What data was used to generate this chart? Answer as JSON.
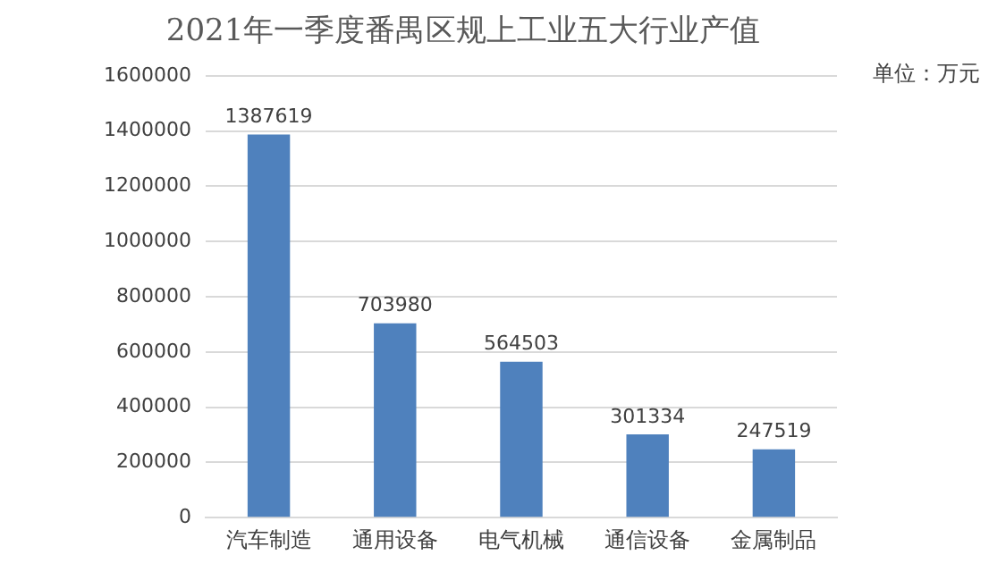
{
  "chart_data": {
    "type": "bar",
    "title": "2021年一季度番禺区规上工业五大行业产值",
    "annotations": [
      "单位：万元"
    ],
    "categories": [
      "汽车制造",
      "通用设备",
      "电气机械",
      "通信设备",
      "金属制品"
    ],
    "values": [
      1387619,
      703980,
      564503,
      301334,
      247519
    ],
    "color": "#4f81bd",
    "ylim": [
      0,
      1600000
    ],
    "yticks": [
      0,
      200000,
      400000,
      600000,
      800000,
      1000000,
      1200000,
      1400000,
      1600000
    ],
    "grid": "y",
    "data_labels": true
  }
}
